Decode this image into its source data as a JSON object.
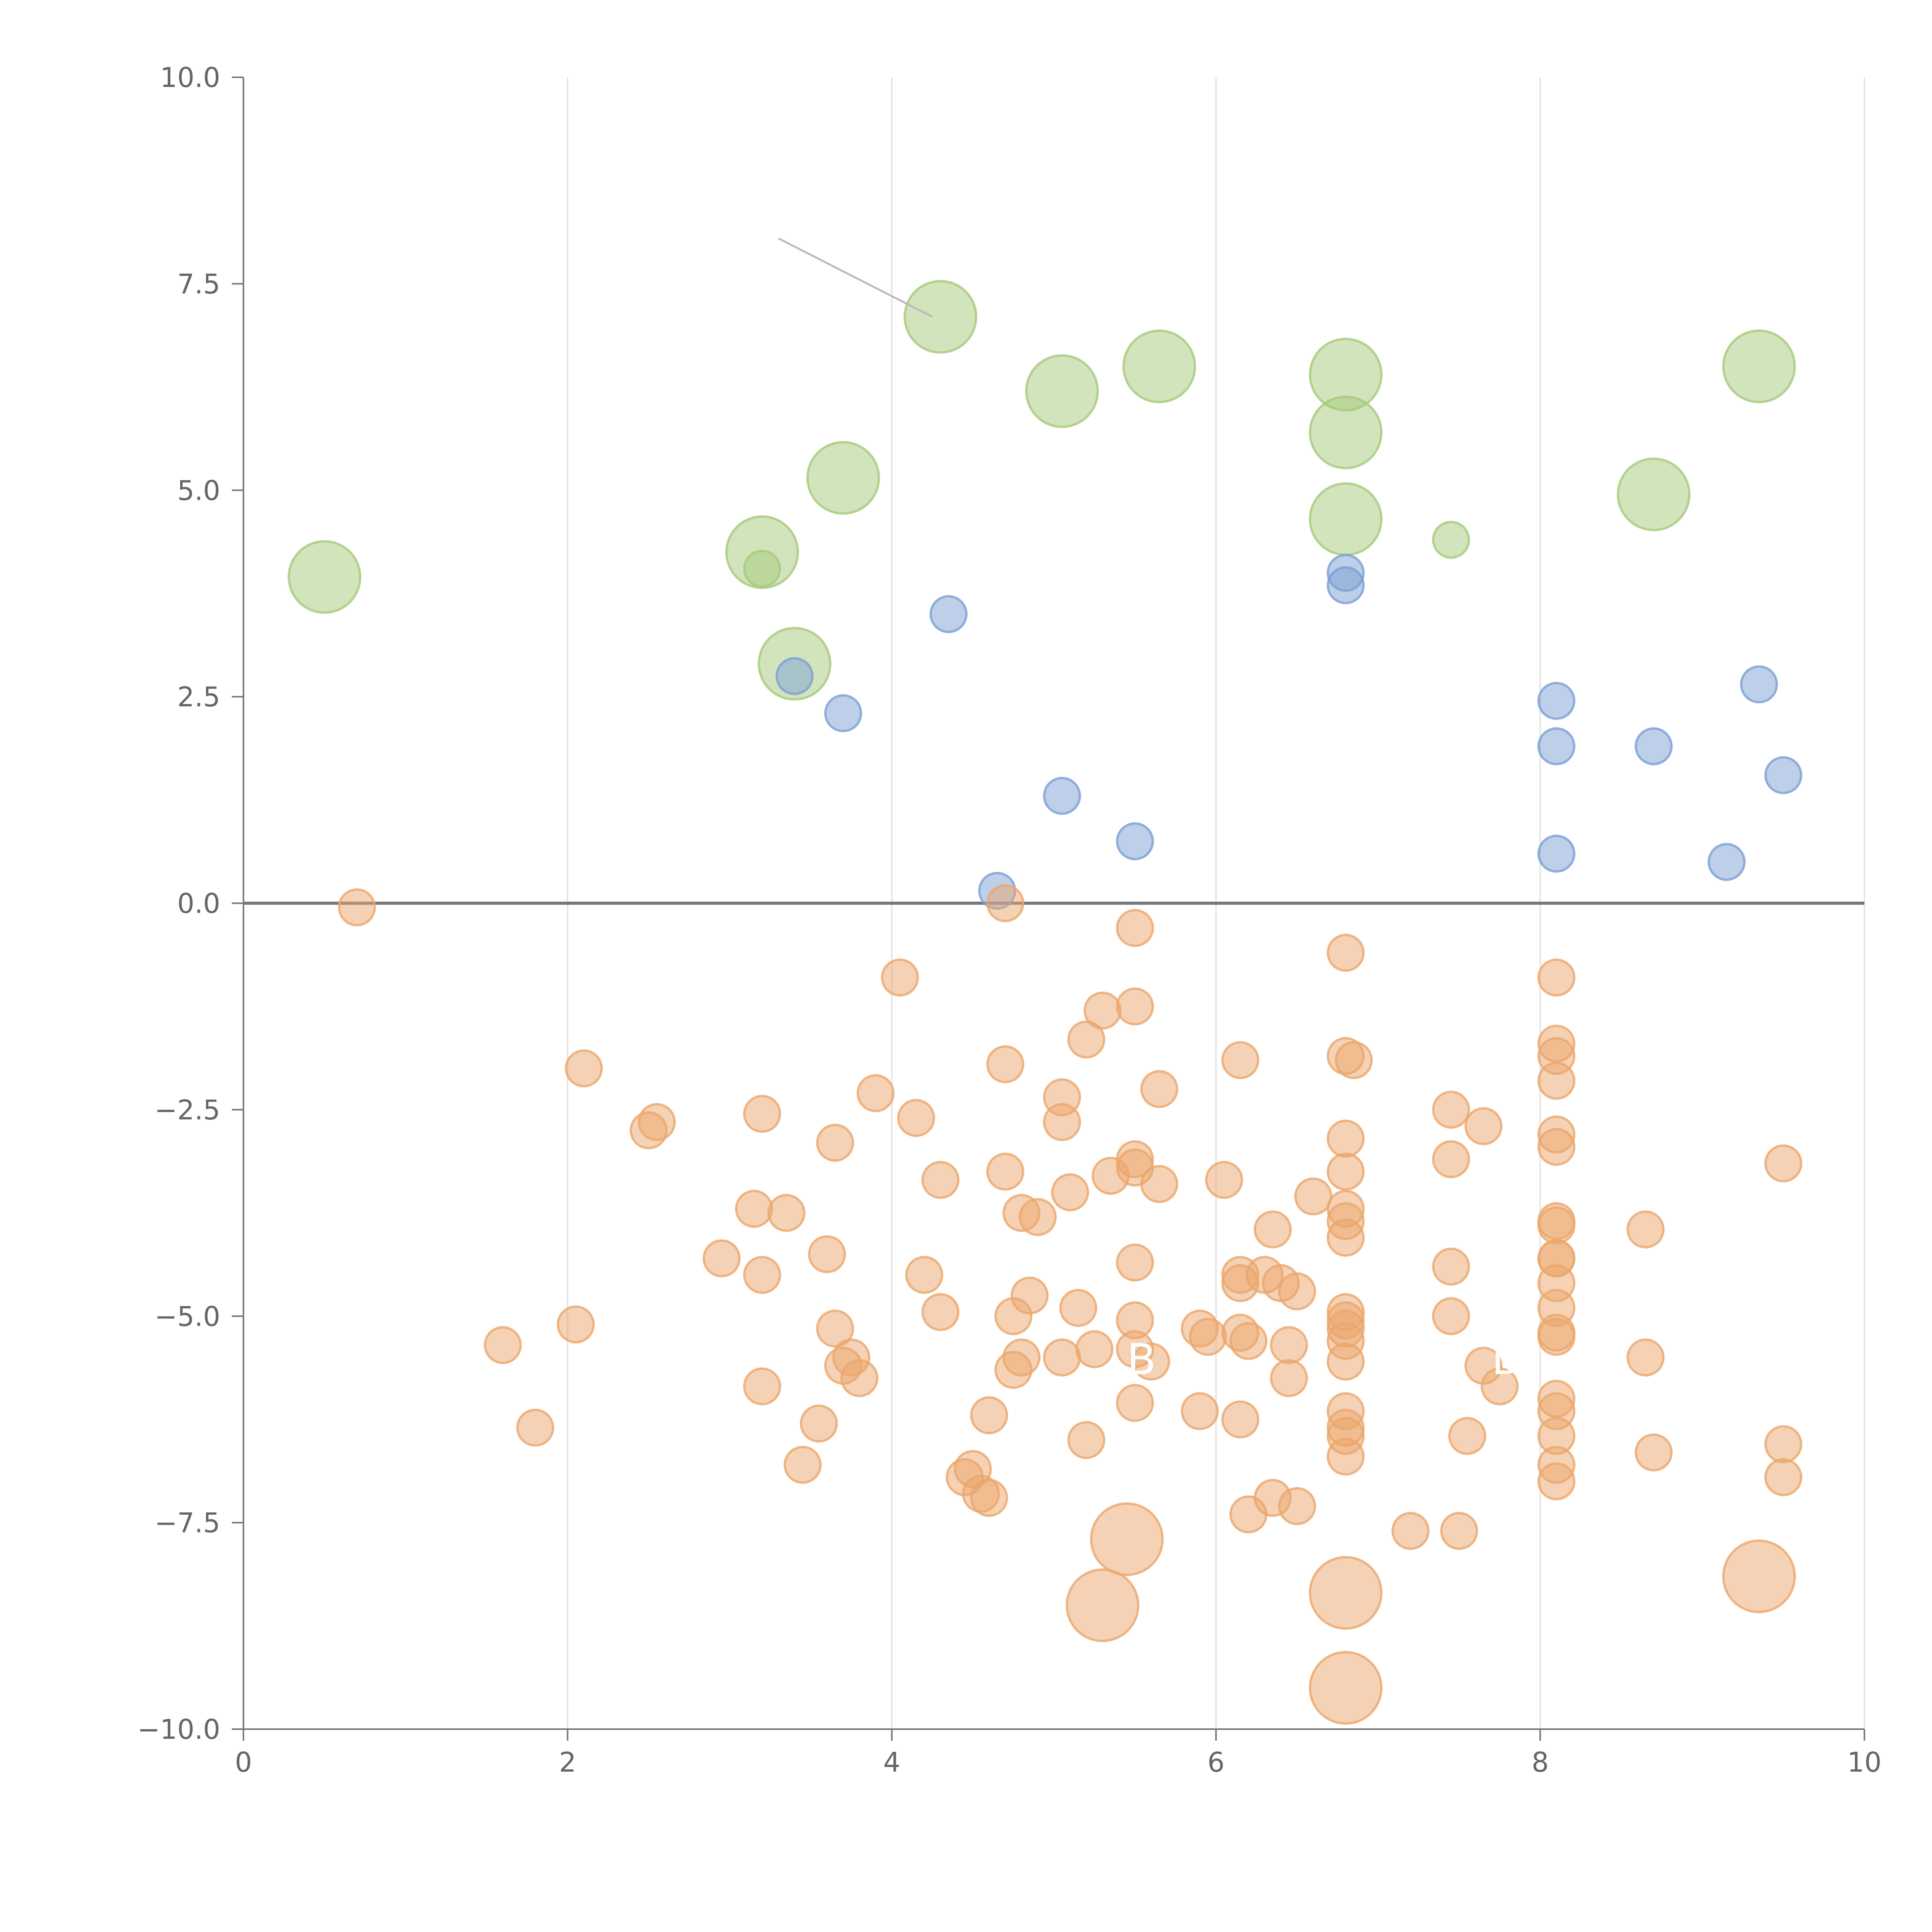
{
  "chart_data": {
    "type": "scatter",
    "title": "",
    "xlabel": "",
    "ylabel": "",
    "xlim": [
      0,
      10
    ],
    "ylim": [
      -10,
      10
    ],
    "grid": "vertical",
    "zero_line": true,
    "x_ticks": [
      0,
      2,
      4,
      6,
      8,
      10
    ],
    "x_tick_labels": [
      "0",
      "2",
      "4",
      "6",
      "8",
      "10"
    ],
    "y_ticks": [
      10,
      7.5,
      5,
      2.5,
      0,
      -2.5,
      -5,
      -7.5,
      -10
    ],
    "y_tick_labels": [
      "10.0",
      "7.5",
      "5.0",
      "2.5",
      "0.0",
      "−2.5",
      "−5.0",
      "−7.5",
      "−10.0"
    ],
    "annotations": [
      {
        "text": "B",
        "x": 5.45,
        "y": -5.7,
        "color": "#ffffff"
      },
      {
        "text": "D",
        "x": 7.7,
        "y": -5.7,
        "color": "#ffffff"
      }
    ],
    "series": [
      {
        "name": "green",
        "color": "#a6c97a",
        "size_scale": "large",
        "points": [
          [
            0.5,
            3.95,
            28
          ],
          [
            3.2,
            4.25,
            28
          ],
          [
            3.2,
            4.05,
            14
          ],
          [
            3.4,
            2.9,
            28
          ],
          [
            3.7,
            5.15,
            28
          ],
          [
            4.3,
            7.1,
            28
          ],
          [
            5.05,
            6.2,
            28
          ],
          [
            5.65,
            6.5,
            28
          ],
          [
            6.8,
            6.4,
            28
          ],
          [
            6.8,
            5.7,
            28
          ],
          [
            6.8,
            4.65,
            28
          ],
          [
            7.45,
            4.4,
            14
          ],
          [
            8.7,
            4.95,
            28
          ],
          [
            9.35,
            6.5,
            28
          ]
        ]
      },
      {
        "name": "blue",
        "color": "#7b9fd4",
        "size_scale": "medium",
        "points": [
          [
            3.4,
            2.75,
            14
          ],
          [
            3.7,
            2.3,
            14
          ],
          [
            4.35,
            3.5,
            14
          ],
          [
            4.65,
            0.15,
            14
          ],
          [
            5.05,
            1.3,
            14
          ],
          [
            5.5,
            0.75,
            14
          ],
          [
            6.8,
            4.0,
            14
          ],
          [
            6.8,
            3.85,
            14
          ],
          [
            8.1,
            2.45,
            14
          ],
          [
            8.1,
            1.9,
            14
          ],
          [
            8.1,
            0.6,
            14
          ],
          [
            8.7,
            1.9,
            14
          ],
          [
            9.15,
            0.5,
            14
          ],
          [
            9.35,
            2.65,
            14
          ],
          [
            9.5,
            1.55,
            14
          ]
        ]
      },
      {
        "name": "orange",
        "color": "#eba66b",
        "size_scale": "medium",
        "points": [
          [
            0.7,
            -0.05,
            14
          ],
          [
            1.6,
            -5.35,
            14
          ],
          [
            1.8,
            -6.35,
            14
          ],
          [
            2.05,
            -5.1,
            14
          ],
          [
            2.1,
            -2.0,
            14
          ],
          [
            2.5,
            -2.75,
            14
          ],
          [
            2.55,
            -2.65,
            14
          ],
          [
            2.95,
            -4.3,
            14
          ],
          [
            3.15,
            -3.7,
            14
          ],
          [
            3.2,
            -2.55,
            14
          ],
          [
            3.2,
            -4.5,
            14
          ],
          [
            3.2,
            -5.85,
            14
          ],
          [
            3.35,
            -3.75,
            14
          ],
          [
            3.45,
            -6.8,
            14
          ],
          [
            3.55,
            -6.3,
            14
          ],
          [
            3.6,
            -4.25,
            14
          ],
          [
            3.65,
            -2.9,
            14
          ],
          [
            3.65,
            -5.15,
            14
          ],
          [
            3.7,
            -5.6,
            14
          ],
          [
            3.75,
            -5.5,
            14
          ],
          [
            3.8,
            -5.75,
            14
          ],
          [
            3.9,
            -2.3,
            14
          ],
          [
            4.05,
            -0.9,
            14
          ],
          [
            4.15,
            -2.6,
            14
          ],
          [
            4.2,
            -4.5,
            14
          ],
          [
            4.3,
            -3.35,
            14
          ],
          [
            4.3,
            -4.95,
            14
          ],
          [
            4.45,
            -6.95,
            14
          ],
          [
            4.5,
            -6.85,
            14
          ],
          [
            4.55,
            -7.15,
            14
          ],
          [
            4.6,
            -6.2,
            14
          ],
          [
            4.6,
            -7.2,
            14
          ],
          [
            4.7,
            -0.0,
            14
          ],
          [
            4.7,
            -3.25,
            14
          ],
          [
            4.7,
            -1.95,
            14
          ],
          [
            4.75,
            -5.0,
            14
          ],
          [
            4.75,
            -5.65,
            14
          ],
          [
            4.8,
            -3.75,
            14
          ],
          [
            4.8,
            -5.5,
            14
          ],
          [
            4.85,
            -4.75,
            14
          ],
          [
            4.9,
            -3.8,
            14
          ],
          [
            5.05,
            -2.35,
            14
          ],
          [
            5.05,
            -2.65,
            14
          ],
          [
            5.05,
            -5.5,
            14
          ],
          [
            5.1,
            -3.5,
            14
          ],
          [
            5.15,
            -4.9,
            14
          ],
          [
            5.2,
            -1.65,
            14
          ],
          [
            5.2,
            -6.5,
            14
          ],
          [
            5.25,
            -5.4,
            14
          ],
          [
            5.3,
            -1.3,
            14
          ],
          [
            5.35,
            -3.3,
            14
          ],
          [
            5.45,
            -7.7,
            28
          ],
          [
            5.3,
            -8.5,
            28
          ],
          [
            5.5,
            -0.3,
            14
          ],
          [
            5.5,
            -1.25,
            14
          ],
          [
            5.5,
            -3.1,
            14
          ],
          [
            5.5,
            -3.2,
            14
          ],
          [
            5.5,
            -4.35,
            14
          ],
          [
            5.5,
            -5.05,
            14
          ],
          [
            5.5,
            -5.4,
            14
          ],
          [
            5.5,
            -6.05,
            14
          ],
          [
            5.6,
            -5.55,
            14
          ],
          [
            5.65,
            -2.25,
            14
          ],
          [
            5.65,
            -3.4,
            14
          ],
          [
            5.9,
            -5.15,
            14
          ],
          [
            5.9,
            -6.15,
            14
          ],
          [
            5.95,
            -5.25,
            14
          ],
          [
            6.05,
            -3.35,
            14
          ],
          [
            6.15,
            -1.9,
            14
          ],
          [
            6.15,
            -4.5,
            14
          ],
          [
            6.15,
            -4.6,
            14
          ],
          [
            6.15,
            -5.2,
            14
          ],
          [
            6.15,
            -6.25,
            14
          ],
          [
            6.2,
            -5.3,
            14
          ],
          [
            6.2,
            -7.4,
            14
          ],
          [
            6.3,
            -4.5,
            14
          ],
          [
            6.35,
            -3.95,
            14
          ],
          [
            6.35,
            -7.2,
            14
          ],
          [
            6.4,
            -4.6,
            14
          ],
          [
            6.45,
            -5.35,
            14
          ],
          [
            6.45,
            -5.75,
            14
          ],
          [
            6.5,
            -4.7,
            14
          ],
          [
            6.5,
            -7.3,
            14
          ],
          [
            6.6,
            -3.55,
            14
          ],
          [
            6.8,
            -0.6,
            14
          ],
          [
            6.8,
            -1.85,
            14
          ],
          [
            6.85,
            -1.9,
            14
          ],
          [
            6.8,
            -2.85,
            14
          ],
          [
            6.8,
            -3.25,
            14
          ],
          [
            6.8,
            -3.7,
            14
          ],
          [
            6.8,
            -3.85,
            14
          ],
          [
            6.8,
            -4.05,
            14
          ],
          [
            6.8,
            -4.95,
            14
          ],
          [
            6.8,
            -5.05,
            14
          ],
          [
            6.8,
            -5.15,
            14
          ],
          [
            6.8,
            -5.3,
            14
          ],
          [
            6.8,
            -5.55,
            14
          ],
          [
            6.8,
            -6.15,
            14
          ],
          [
            6.8,
            -6.35,
            14
          ],
          [
            6.8,
            -6.45,
            14
          ],
          [
            6.8,
            -6.7,
            14
          ],
          [
            6.8,
            -8.35,
            28
          ],
          [
            6.8,
            -9.5,
            28
          ],
          [
            7.2,
            -7.6,
            14
          ],
          [
            7.45,
            -2.5,
            14
          ],
          [
            7.45,
            -3.1,
            14
          ],
          [
            7.45,
            -4.4,
            14
          ],
          [
            7.45,
            -5.0,
            14
          ],
          [
            7.5,
            -7.6,
            14
          ],
          [
            7.55,
            -6.45,
            14
          ],
          [
            7.65,
            -2.7,
            14
          ],
          [
            7.65,
            -5.6,
            14
          ],
          [
            7.75,
            -5.85,
            14
          ],
          [
            8.1,
            -0.9,
            14
          ],
          [
            8.1,
            -1.7,
            14
          ],
          [
            8.1,
            -1.85,
            14
          ],
          [
            8.1,
            -2.15,
            14
          ],
          [
            8.1,
            -2.8,
            14
          ],
          [
            8.1,
            -2.95,
            14
          ],
          [
            8.1,
            -3.85,
            14
          ],
          [
            8.1,
            -3.9,
            14
          ],
          [
            8.1,
            -4.3,
            14
          ],
          [
            8.1,
            -4.3,
            14
          ],
          [
            8.1,
            -4.6,
            14
          ],
          [
            8.1,
            -4.9,
            14
          ],
          [
            8.1,
            -5.2,
            14
          ],
          [
            8.1,
            -5.25,
            14
          ],
          [
            8.1,
            -6.0,
            14
          ],
          [
            8.1,
            -6.15,
            14
          ],
          [
            8.1,
            -6.45,
            14
          ],
          [
            8.1,
            -6.8,
            14
          ],
          [
            8.1,
            -7.0,
            14
          ],
          [
            8.65,
            -3.95,
            14
          ],
          [
            8.65,
            -5.5,
            14
          ],
          [
            8.7,
            -6.65,
            14
          ],
          [
            9.35,
            -8.15,
            28
          ],
          [
            9.5,
            -3.15,
            14
          ],
          [
            9.5,
            -6.55,
            14
          ],
          [
            9.5,
            -6.95,
            14
          ]
        ]
      }
    ],
    "leader_line": {
      "from": [
        3.3,
        8.05
      ],
      "to": [
        4.25,
        7.1
      ],
      "color": "#bbbbbb"
    }
  }
}
